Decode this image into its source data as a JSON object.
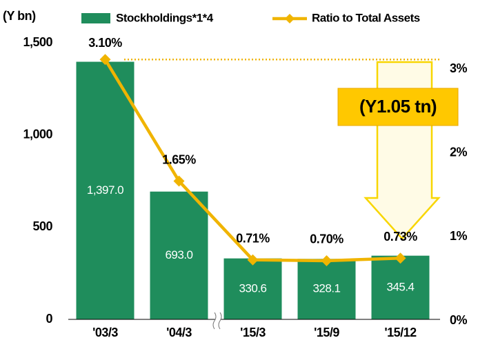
{
  "chart_data": {
    "type": "bar",
    "y_label": "(Y bn)",
    "annotation": "(Y1.05 tn)",
    "categories": [
      "'03/3",
      "'04/3",
      "'15/3",
      "'15/9",
      "'15/12"
    ],
    "series": [
      {
        "name": "Stockholdings*1*4",
        "type": "bar",
        "color": "#1f8d5c",
        "values": [
          1397.0,
          693.0,
          330.6,
          328.1,
          345.4
        ],
        "value_labels": [
          "1,397.0",
          "693.0",
          "330.6",
          "328.1",
          "345.4"
        ]
      },
      {
        "name": "Ratio to Total Assets",
        "type": "line",
        "axis": "y2",
        "color": "#f0b400",
        "values": [
          3.1,
          1.65,
          0.71,
          0.7,
          0.73
        ],
        "value_labels": [
          "3.10%",
          "1.65%",
          "0.71%",
          "0.70%",
          "0.73%"
        ]
      }
    ],
    "ylim": [
      0,
      1500
    ],
    "yticks": [
      0,
      500,
      {
        "value": 1000,
        "label": "1,000"
      },
      {
        "value": 1500,
        "label": "1,500"
      }
    ],
    "y2lim": [
      0,
      3.3
    ],
    "y2ticks": [
      {
        "value": 0,
        "label": "0%"
      },
      {
        "value": 1,
        "label": "1%"
      },
      {
        "value": 2,
        "label": "2%"
      },
      {
        "value": 3,
        "label": "3%"
      }
    ]
  }
}
